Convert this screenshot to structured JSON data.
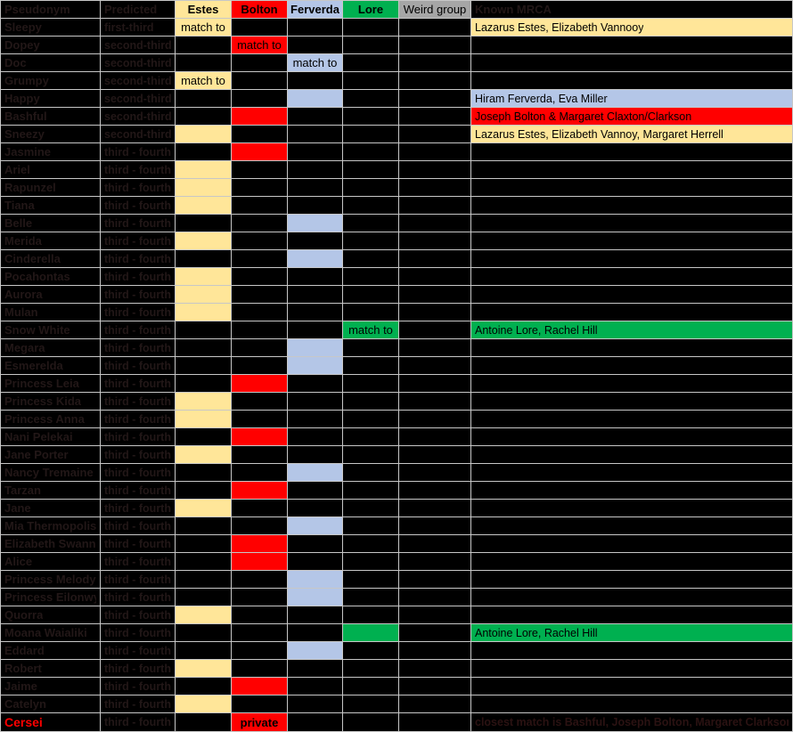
{
  "columns": [
    {
      "id": "pseudonym",
      "label": "Pseudonym",
      "style": "dark"
    },
    {
      "id": "predicted",
      "label": "Predicted",
      "style": "dark"
    },
    {
      "id": "estes",
      "label": "Estes",
      "style": "estes"
    },
    {
      "id": "bolton",
      "label": "Bolton",
      "style": "bolton"
    },
    {
      "id": "ferverda",
      "label": "Ferverda",
      "style": "ferverda"
    },
    {
      "id": "lore",
      "label": "Lore",
      "style": "lore"
    },
    {
      "id": "weird",
      "label": "Weird group",
      "style": "weird"
    },
    {
      "id": "mrca",
      "label": "Known MRCA",
      "style": "dark"
    }
  ],
  "colors": {
    "estes": "#FFE699",
    "bolton": "#FF0000",
    "ferverda": "#B4C6E7",
    "lore": "#00B050",
    "weird": "#A6A6A6",
    "background": "#000000",
    "gridline": "#c7c7c7",
    "hidden_text": "#221717",
    "cersei_label": "#FF0000"
  },
  "cell_labels": {
    "match_to": "match to",
    "private": "private"
  },
  "rows": [
    {
      "name": "Sleepy",
      "predicted": "first-third",
      "group": "estes",
      "group_text": "match to",
      "mrca_text": "Lazarus Estes, Elizabeth Vannooy",
      "mrca_fill": "estes"
    },
    {
      "name": "Dopey",
      "predicted": "second-third",
      "group": "bolton",
      "group_text": "match to",
      "mrca_text": "",
      "mrca_fill": null
    },
    {
      "name": "Doc",
      "predicted": "second-third",
      "group": "ferverda",
      "group_text": "match to",
      "mrca_text": "",
      "mrca_fill": null
    },
    {
      "name": "Grumpy",
      "predicted": "second-third",
      "group": "estes",
      "group_text": "match to",
      "mrca_text": "",
      "mrca_fill": null
    },
    {
      "name": "Happy",
      "predicted": "second-third",
      "group": "ferverda",
      "group_text": "",
      "mrca_text": "Hiram Ferverda, Eva Miller",
      "mrca_fill": "ferverda"
    },
    {
      "name": "Bashful",
      "predicted": "second-third",
      "group": "bolton",
      "group_text": "",
      "mrca_text": "Joseph Bolton & Margaret Claxton/Clarkson",
      "mrca_fill": "bolton"
    },
    {
      "name": "Sneezy",
      "predicted": "second-third",
      "group": "estes",
      "group_text": "",
      "mrca_text": "Lazarus Estes, Elizabeth Vannoy, Margaret Herrell",
      "mrca_fill": "estes"
    },
    {
      "name": "Jasmine",
      "predicted": "third - fourth",
      "group": "bolton",
      "group_text": "",
      "mrca_text": "",
      "mrca_fill": null
    },
    {
      "name": "Ariel",
      "predicted": "third - fourth",
      "group": "estes",
      "group_text": "",
      "mrca_text": "",
      "mrca_fill": null
    },
    {
      "name": "Rapunzel",
      "predicted": "third - fourth",
      "group": "estes",
      "group_text": "",
      "mrca_text": "",
      "mrca_fill": null
    },
    {
      "name": "Tiana",
      "predicted": "third - fourth",
      "group": "estes",
      "group_text": "",
      "mrca_text": "",
      "mrca_fill": null
    },
    {
      "name": "Belle",
      "predicted": "third - fourth",
      "group": "ferverda",
      "group_text": "",
      "mrca_text": "",
      "mrca_fill": null
    },
    {
      "name": "Merida",
      "predicted": "third - fourth",
      "group": "estes",
      "group_text": "",
      "mrca_text": "",
      "mrca_fill": null
    },
    {
      "name": "Cinderella",
      "predicted": "third - fourth",
      "group": "ferverda",
      "group_text": "",
      "mrca_text": "",
      "mrca_fill": null
    },
    {
      "name": "Pocahontas",
      "predicted": "third - fourth",
      "group": "estes",
      "group_text": "",
      "mrca_text": "",
      "mrca_fill": null
    },
    {
      "name": "Aurora",
      "predicted": "third - fourth",
      "group": "estes",
      "group_text": "",
      "mrca_text": "",
      "mrca_fill": null
    },
    {
      "name": "Mulan",
      "predicted": "third - fourth",
      "group": "estes",
      "group_text": "",
      "mrca_text": "",
      "mrca_fill": null
    },
    {
      "name": "Snow White",
      "predicted": "third - fourth",
      "group": "lore",
      "group_text": "match to",
      "mrca_text": "Antoine Lore, Rachel Hill",
      "mrca_fill": "lore"
    },
    {
      "name": "Megara",
      "predicted": "third - fourth",
      "group": "ferverda",
      "group_text": "",
      "mrca_text": "",
      "mrca_fill": null
    },
    {
      "name": "Esmerelda",
      "predicted": "third - fourth",
      "group": "ferverda",
      "group_text": "",
      "mrca_text": "",
      "mrca_fill": null
    },
    {
      "name": "Princess Leia",
      "predicted": "third - fourth",
      "group": "bolton",
      "group_text": "",
      "mrca_text": "",
      "mrca_fill": null
    },
    {
      "name": "Princess Kida",
      "predicted": "third - fourth",
      "group": "estes",
      "group_text": "",
      "mrca_text": "",
      "mrca_fill": null
    },
    {
      "name": "Princess Anna",
      "predicted": "third - fourth",
      "group": "estes",
      "group_text": "",
      "mrca_text": "",
      "mrca_fill": null
    },
    {
      "name": "Nani Pelekai",
      "predicted": "third - fourth",
      "group": "bolton",
      "group_text": "",
      "mrca_text": "",
      "mrca_fill": null
    },
    {
      "name": "Jane Porter",
      "predicted": "third - fourth",
      "group": "estes",
      "group_text": "",
      "mrca_text": "",
      "mrca_fill": null
    },
    {
      "name": "Nancy Tremaine",
      "predicted": "third - fourth",
      "group": "ferverda",
      "group_text": "",
      "mrca_text": "",
      "mrca_fill": null
    },
    {
      "name": "Tarzan",
      "predicted": "third - fourth",
      "group": "bolton",
      "group_text": "",
      "mrca_text": "",
      "mrca_fill": null
    },
    {
      "name": "Jane",
      "predicted": "third - fourth",
      "group": "estes",
      "group_text": "",
      "mrca_text": "",
      "mrca_fill": null
    },
    {
      "name": "Mia Thermopolis",
      "predicted": "third - fourth",
      "group": "ferverda",
      "group_text": "",
      "mrca_text": "",
      "mrca_fill": null
    },
    {
      "name": "Elizabeth Swann",
      "predicted": "third - fourth",
      "group": "bolton",
      "group_text": "",
      "mrca_text": "",
      "mrca_fill": null
    },
    {
      "name": "Alice",
      "predicted": "third - fourth",
      "group": "bolton",
      "group_text": "",
      "mrca_text": "",
      "mrca_fill": null
    },
    {
      "name": "Princess Melody",
      "predicted": "third - fourth",
      "group": "ferverda",
      "group_text": "",
      "mrca_text": "",
      "mrca_fill": null
    },
    {
      "name": "Princess Eilonwy",
      "predicted": "third - fourth",
      "group": "ferverda",
      "group_text": "",
      "mrca_text": "",
      "mrca_fill": null
    },
    {
      "name": "Quorra",
      "predicted": "third - fourth",
      "group": "estes",
      "group_text": "",
      "mrca_text": "",
      "mrca_fill": null
    },
    {
      "name": "Moana Waialiki",
      "predicted": "third - fourth",
      "group": "lore",
      "group_text": "",
      "mrca_text": "Antoine Lore, Rachel Hill",
      "mrca_fill": "lore"
    },
    {
      "name": "Eddard",
      "predicted": "third - fourth",
      "group": "ferverda",
      "group_text": "",
      "mrca_text": "",
      "mrca_fill": null
    },
    {
      "name": "Robert",
      "predicted": "third - fourth",
      "group": "estes",
      "group_text": "",
      "mrca_text": "",
      "mrca_fill": null
    },
    {
      "name": "Jaime",
      "predicted": "third - fourth",
      "group": "bolton",
      "group_text": "",
      "mrca_text": "",
      "mrca_fill": null
    },
    {
      "name": "Catelyn",
      "predicted": "third - fourth",
      "group": "estes",
      "group_text": "",
      "mrca_text": "",
      "mrca_fill": null
    },
    {
      "name": "Cersei",
      "predicted": "third - fourth",
      "group": "bolton",
      "group_text": "private",
      "group_text_bold": true,
      "name_red": true,
      "mrca_dim": true,
      "mrca_text": "closest match is Bashful, Joseph Bolton, Margaret Clarkson",
      "mrca_fill": null
    }
  ]
}
